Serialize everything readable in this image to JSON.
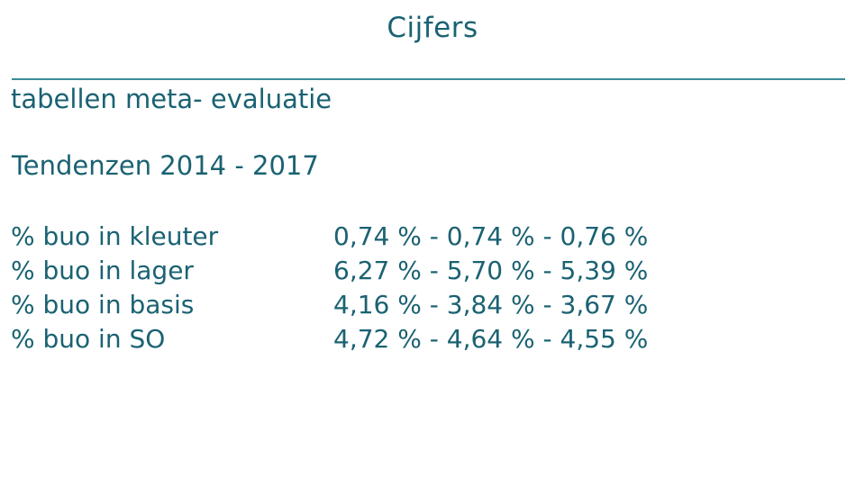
{
  "slide": {
    "title": "Cijfers",
    "subtitle": "tabellen meta- evaluatie",
    "section_heading": "Tendenzen 2014 - 2017",
    "colors": {
      "text": "#1a6272",
      "rule": "#3d8c98",
      "background": "#ffffff"
    },
    "table": {
      "rows": [
        {
          "label": "% buo in kleuter",
          "values": [
            "0,74 %",
            "0,74 %",
            "0,76 %"
          ],
          "values_text": "0,74 % - 0,74 % - 0,76 %"
        },
        {
          "label": "% buo in lager",
          "values": [
            "6,27 %",
            "5,70 %",
            "5,39 %"
          ],
          "values_text": "6,27 % - 5,70 % - 5,39 %"
        },
        {
          "label": "% buo in basis",
          "values": [
            "4,16 %",
            "3,84 %",
            "3,67 %"
          ],
          "values_text": "4,16 % - 3,84 % - 3,67 %"
        },
        {
          "label": "% buo in SO",
          "values": [
            "4,72 %",
            "4,64 %",
            "4,55 %"
          ],
          "values_text": "4,72 % - 4,64 % - 4,55 %"
        }
      ]
    }
  }
}
